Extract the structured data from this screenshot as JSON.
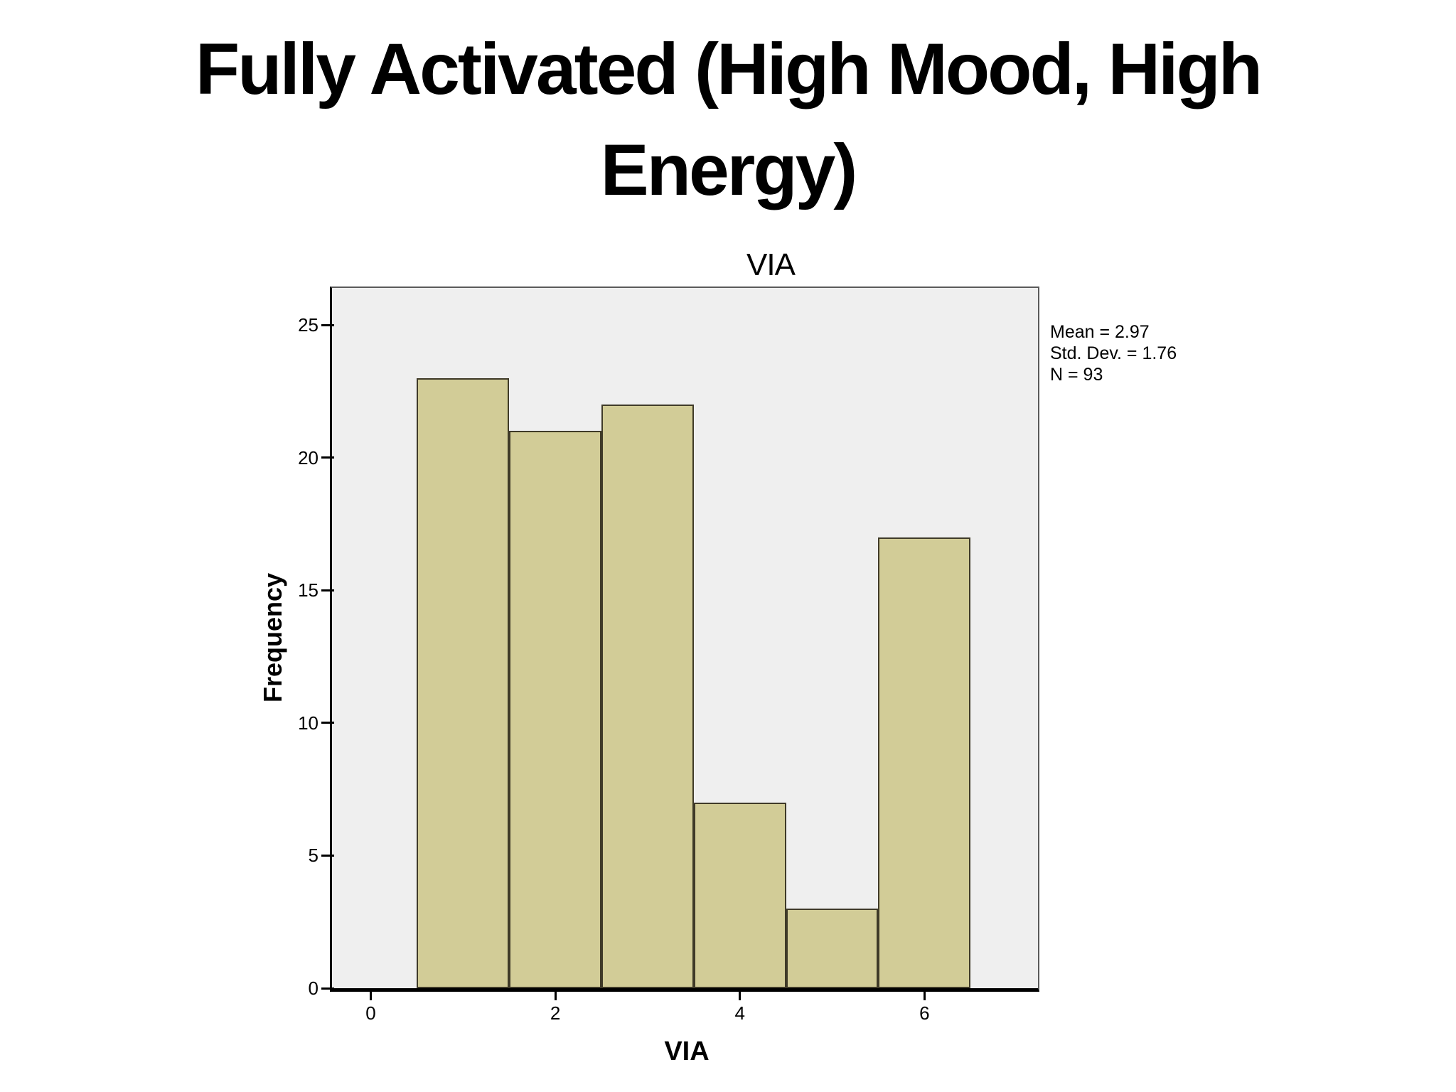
{
  "slide": {
    "title_line1": "Fully Activated (High Mood, High",
    "title_line2": "Energy)"
  },
  "chart_data": {
    "type": "bar",
    "subtype": "histogram",
    "title": "VIA",
    "xlabel": "VIA",
    "ylabel": "Frequency",
    "categories": [
      1,
      2,
      3,
      4,
      5,
      6
    ],
    "bin_width": 1,
    "values": [
      23,
      21,
      22,
      7,
      3,
      17
    ],
    "x_ticks": [
      0,
      2,
      4,
      6
    ],
    "y_ticks": [
      0,
      5,
      10,
      15,
      20,
      25
    ],
    "xlim": [
      -0.42,
      7.23
    ],
    "ylim": [
      0,
      26.4
    ],
    "grid": false,
    "legend": "none",
    "annotations": [
      "Mean = 2.97",
      "Std. Dev. = 1.76",
      "N = 93"
    ],
    "stats": {
      "mean": 2.97,
      "std_dev": 1.76,
      "n": 93
    },
    "colors": {
      "bar_fill": "#d2cc97",
      "bar_border": "#3f3a28",
      "plot_bg": "#efefef",
      "frame": "#5a5a5a",
      "axis": "#000000",
      "text": "#000000"
    }
  }
}
